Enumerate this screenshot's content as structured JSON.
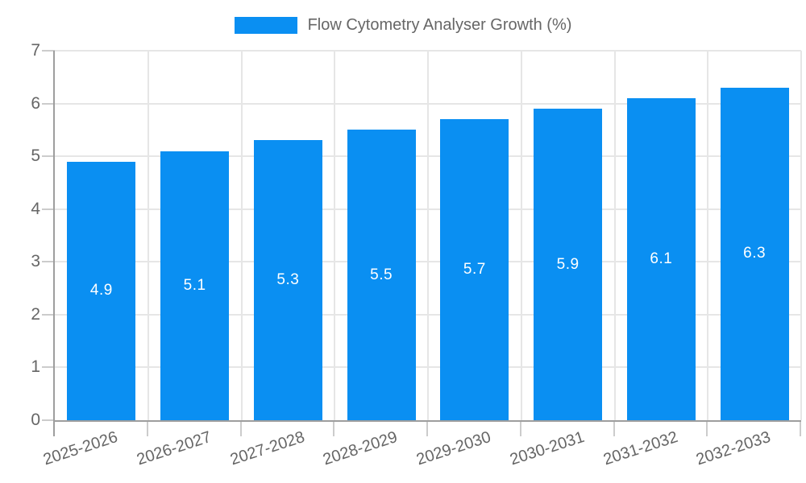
{
  "chart_data": {
    "type": "bar",
    "title": "Flow Cytometry Analyser Growth (%)",
    "legend_position": "top",
    "categories": [
      "2025-2026",
      "2026-2027",
      "2027-2028",
      "2028-2029",
      "2029-2030",
      "2030-2031",
      "2031-2032",
      "2032-2033"
    ],
    "values": [
      4.9,
      5.1,
      5.3,
      5.5,
      5.7,
      5.9,
      6.1,
      6.3
    ],
    "xlabel": "",
    "ylabel": "",
    "ylim": [
      0,
      7
    ],
    "yticks": [
      0,
      1,
      2,
      3,
      4,
      5,
      6,
      7
    ],
    "grid": true,
    "x_label_rotation_deg": -18,
    "colors": {
      "bar": "#0a8ff2",
      "bar_value_text": "#ffffff",
      "axis_line": "#9e9e9e",
      "grid_line": "#e6e6e6",
      "tick_mark": "#cccccc",
      "tick_text": "#666666",
      "legend_text": "#666666",
      "background": "#ffffff"
    }
  }
}
